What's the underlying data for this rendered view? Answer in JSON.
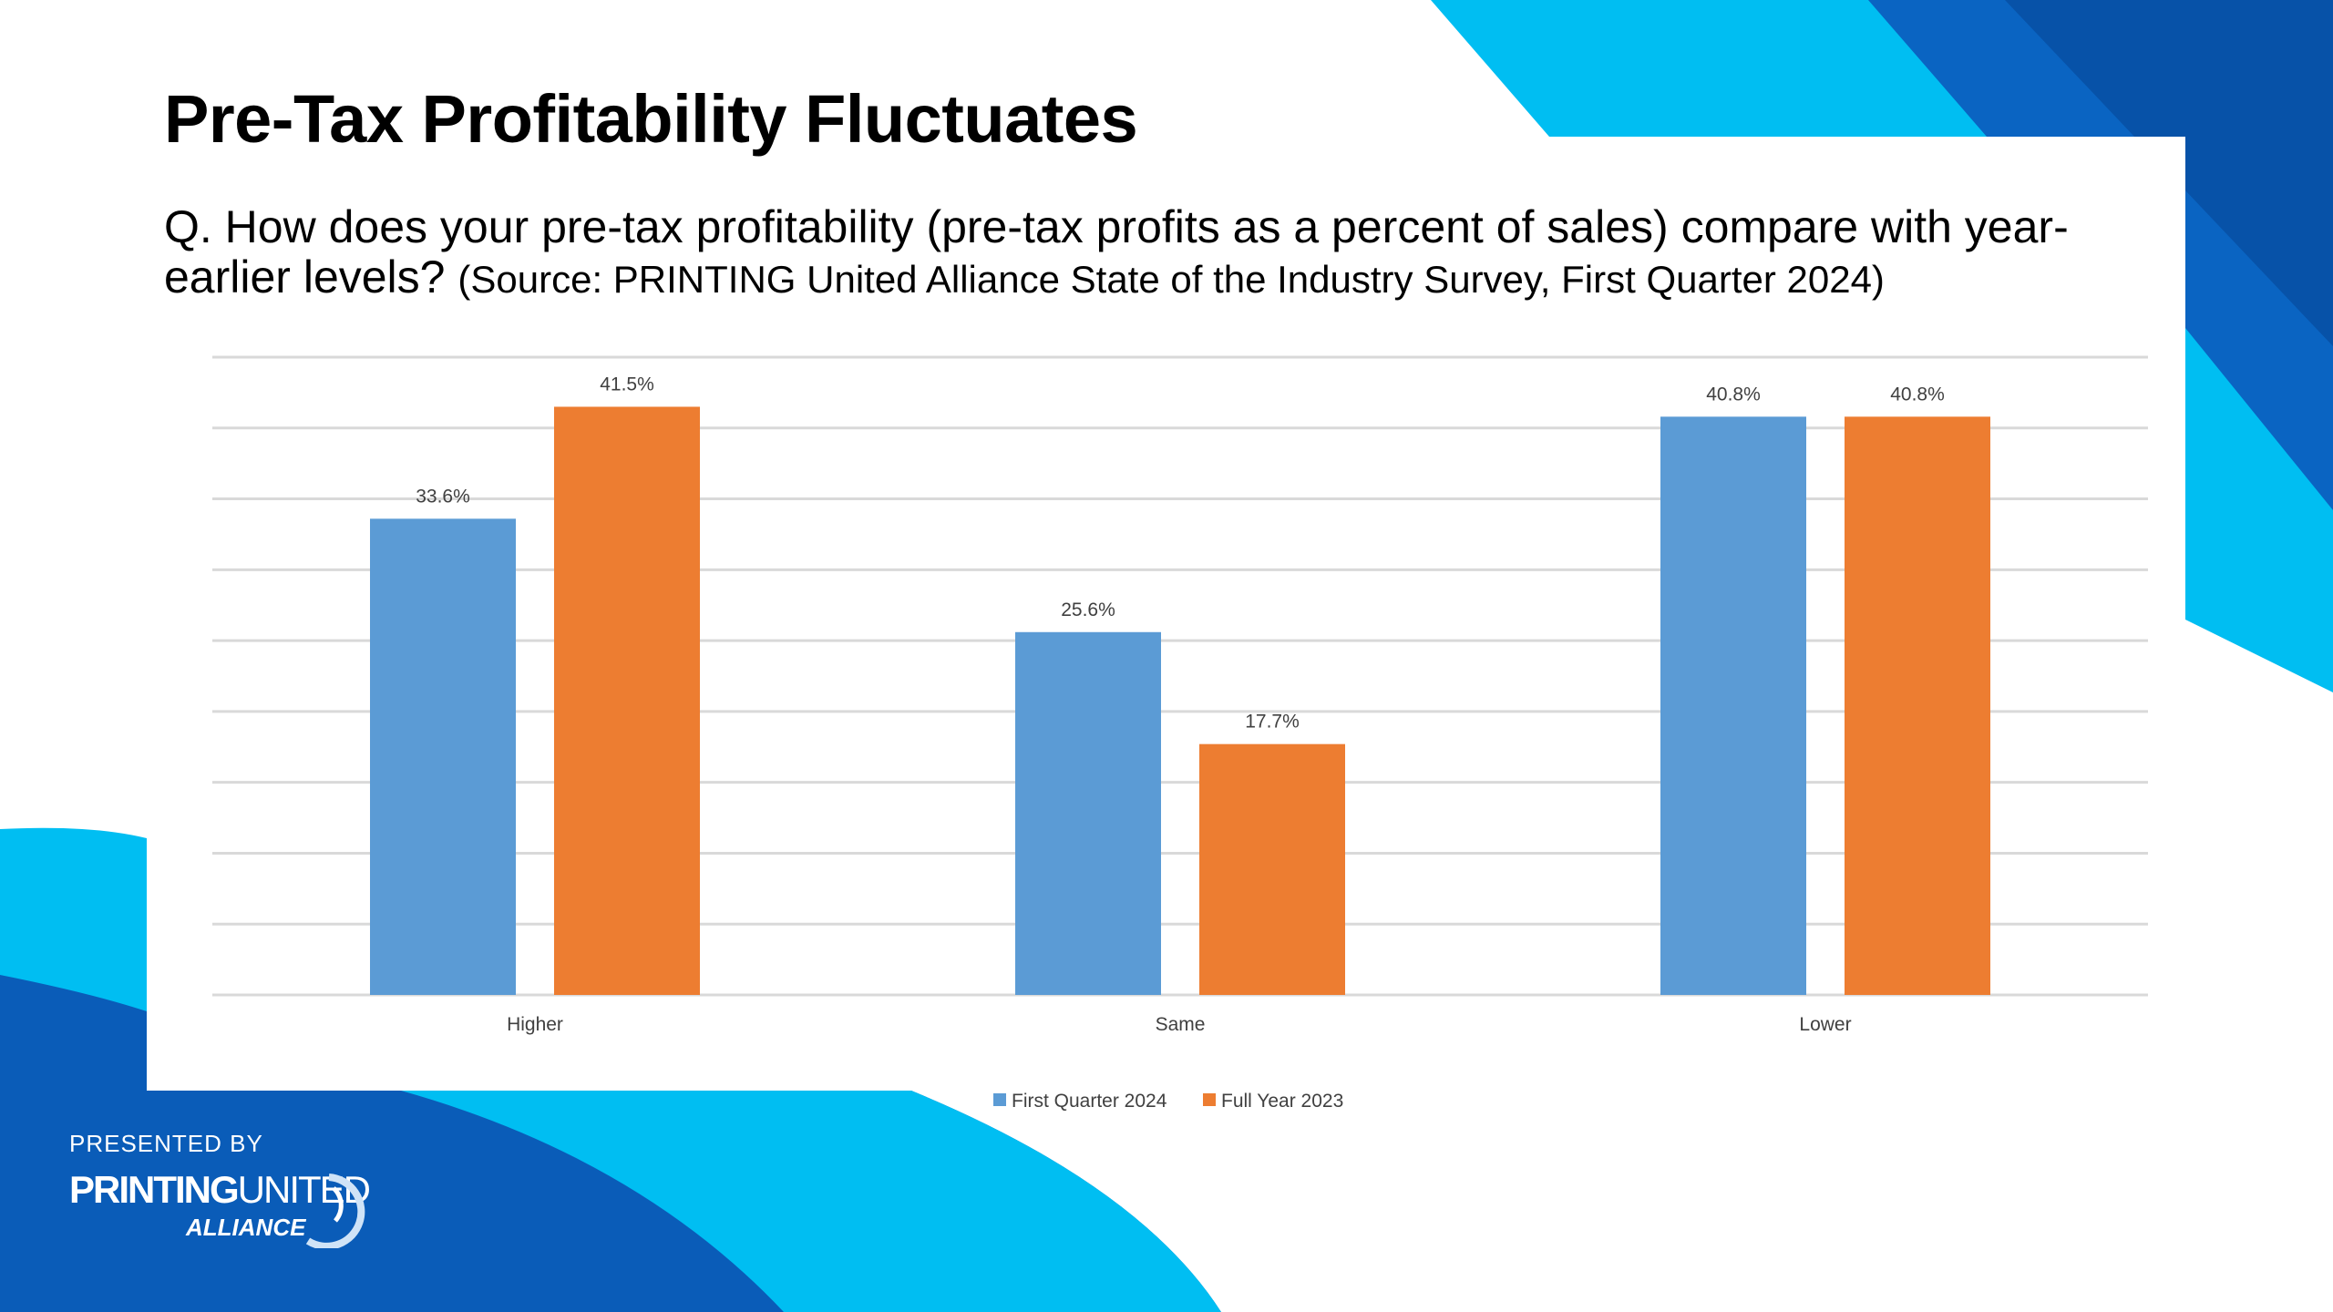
{
  "slide": {
    "title": "Pre-Tax Profitability Fluctuates",
    "question": "Q. How does your pre-tax profitability (pre-tax profits as a percent of sales) compare with year-earlier levels?",
    "source": "(Source: PRINTING United Alliance State of the Industry Survey, First Quarter 2024)",
    "presented_by": "PRESENTED BY",
    "logo_text": "PRINTING UNITED ALLIANCE"
  },
  "colors": {
    "blue": "#5B9BD5",
    "orange": "#ED7D31",
    "cyan": "#00BEF2",
    "navy": "#0A5CB8"
  },
  "chart_data": {
    "type": "bar",
    "categories": [
      "Higher",
      "Same",
      "Lower"
    ],
    "series": [
      {
        "name": "First Quarter 2024",
        "values": [
          33.6,
          25.6,
          40.8
        ],
        "labels": [
          "33.6%",
          "25.6%",
          "40.8%"
        ],
        "color": "#5B9BD5"
      },
      {
        "name": "Full Year 2023",
        "values": [
          41.5,
          17.7,
          40.8
        ],
        "labels": [
          "41.5%",
          "17.7%",
          "40.8%"
        ],
        "color": "#ED7D31"
      }
    ],
    "ylim": [
      0,
      45
    ],
    "ytick_step": 5,
    "grid": true,
    "yaxis_labels_shown": false,
    "legend": "bottom"
  }
}
